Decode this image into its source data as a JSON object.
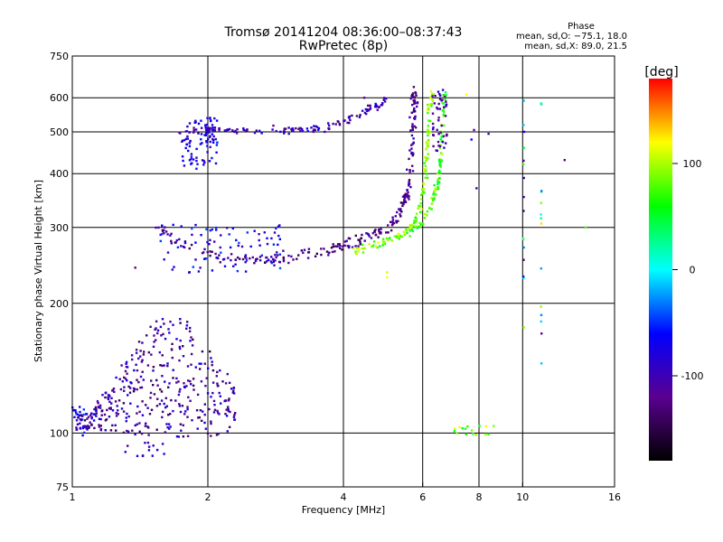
{
  "chart_data": {
    "type": "scatter",
    "title": "Tromsø 20141204 08:36:00–08:37:43",
    "subtitle": "RwPretec (8p)",
    "xlabel": "Frequency [MHz]",
    "ylabel": "Stationary phase Virtual Height [km]",
    "x_scale": "log",
    "y_scale": "log",
    "xlim": [
      1,
      16
    ],
    "ylim": [
      75,
      750
    ],
    "x_ticks": [
      1,
      2,
      4,
      6,
      8,
      10,
      16
    ],
    "y_ticks": [
      75,
      100,
      200,
      300,
      400,
      500,
      600,
      750
    ],
    "grid": true,
    "stats": {
      "header": "Phase",
      "line1": "mean, sd,O: −75.1, 18.0",
      "line2": "mean, sd,X:  89.0, 21.5"
    },
    "colorbar": {
      "label": "[deg]",
      "range": [
        -180,
        180
      ],
      "ticks": [
        100,
        0,
        -100
      ],
      "colors": [
        "#000000",
        "#5a0090",
        "#0000ff",
        "#00ffff",
        "#00ff00",
        "#ffff00",
        "#ff0000"
      ]
    },
    "clusters": [
      {
        "kind": "band",
        "n": 130,
        "pts": [
          [
            1.7,
            500
          ],
          [
            2.3,
            505
          ],
          [
            3.0,
            505
          ],
          [
            3.6,
            510
          ],
          [
            4.2,
            540
          ],
          [
            4.7,
            575
          ],
          [
            5.0,
            590
          ]
        ],
        "jitter": 0.012,
        "phase": [
          -140,
          -60
        ]
      },
      {
        "kind": "box",
        "n": 70,
        "f": [
          1.75,
          2.1
        ],
        "h": [
          410,
          540
        ],
        "phase": [
          -110,
          -50
        ]
      },
      {
        "kind": "box",
        "n": 22,
        "f": [
          1.98,
          2.08
        ],
        "h": [
          470,
          540
        ],
        "phase": [
          -110,
          -60
        ]
      },
      {
        "kind": "band",
        "n": 260,
        "pts": [
          [
            1.55,
            300
          ],
          [
            1.8,
            270
          ],
          [
            2.2,
            255
          ],
          [
            2.6,
            252
          ],
          [
            3.0,
            255
          ],
          [
            3.5,
            262
          ],
          [
            4.0,
            272
          ],
          [
            4.5,
            285
          ],
          [
            5.0,
            300
          ],
          [
            5.3,
            320
          ],
          [
            5.5,
            350
          ],
          [
            5.6,
            380
          ],
          [
            5.65,
            430
          ],
          [
            5.7,
            500
          ],
          [
            5.75,
            580
          ],
          [
            5.7,
            620
          ]
        ],
        "jitter": 0.018,
        "phase": [
          -150,
          -90
        ]
      },
      {
        "kind": "box",
        "n": 90,
        "f": [
          1.55,
          2.9
        ],
        "h": [
          235,
          305
        ],
        "phase": [
          -110,
          -40
        ]
      },
      {
        "kind": "band",
        "n": 140,
        "pts": [
          [
            4.2,
            265
          ],
          [
            4.8,
            275
          ],
          [
            5.3,
            285
          ],
          [
            5.7,
            300
          ],
          [
            5.9,
            330
          ],
          [
            6.05,
            370
          ],
          [
            6.1,
            420
          ],
          [
            6.15,
            480
          ],
          [
            6.2,
            560
          ],
          [
            6.3,
            630
          ]
        ],
        "jitter": 0.012,
        "phase": [
          60,
          115
        ]
      },
      {
        "kind": "band",
        "n": 90,
        "pts": [
          [
            5.6,
            290
          ],
          [
            6.0,
            310
          ],
          [
            6.3,
            340
          ],
          [
            6.5,
            380
          ],
          [
            6.6,
            450
          ],
          [
            6.65,
            520
          ],
          [
            6.7,
            620
          ]
        ],
        "jitter": 0.012,
        "phase": [
          40,
          110
        ]
      },
      {
        "kind": "box",
        "n": 45,
        "f": [
          6.3,
          6.8
        ],
        "h": [
          450,
          630
        ],
        "phase": [
          -130,
          -80
        ]
      },
      {
        "kind": "box",
        "n": 400,
        "f": [
          1.02,
          2.3
        ],
        "h": [
          95,
          200
        ],
        "shape": "wedge",
        "phase": [
          -150,
          -70
        ]
      },
      {
        "kind": "box",
        "n": 18,
        "f": [
          1.0,
          1.08
        ],
        "h": [
          98,
          115
        ],
        "phase": [
          -80,
          -40
        ]
      },
      {
        "kind": "box",
        "n": 14,
        "f": [
          1.25,
          1.65
        ],
        "h": [
          88,
          95
        ],
        "phase": [
          -110,
          -60
        ]
      },
      {
        "kind": "box",
        "n": 16,
        "f": [
          7.0,
          8.7
        ],
        "h": [
          99,
          104
        ],
        "phase": [
          40,
          140
        ]
      },
      {
        "kind": "vline",
        "n": 16,
        "f": 10.05,
        "h": [
          170,
          600
        ],
        "phase": [
          -150,
          150
        ]
      },
      {
        "kind": "vline",
        "n": 14,
        "f": 11.0,
        "h": [
          145,
          620
        ],
        "phase": [
          -150,
          150
        ]
      }
    ],
    "misc_points": [
      [
        1.38,
        242,
        -120
      ],
      [
        5.0,
        236,
        110
      ],
      [
        5.0,
        230,
        120
      ],
      [
        7.8,
        505,
        -120
      ],
      [
        7.7,
        480,
        -70
      ],
      [
        7.9,
        370,
        -90
      ],
      [
        8.4,
        495,
        -100
      ],
      [
        13.8,
        300,
        80
      ],
      [
        12.4,
        430,
        -120
      ],
      [
        7.5,
        610,
        120
      ],
      [
        4.45,
        600,
        -120
      ],
      [
        3.2,
        510,
        -110
      ]
    ]
  }
}
